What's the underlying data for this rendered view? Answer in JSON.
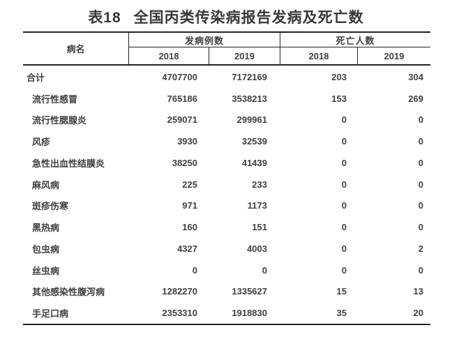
{
  "title": {
    "prefix": "表18",
    "text": "全国丙类传染病报告发病及死亡数"
  },
  "colors": {
    "ink": "#404040",
    "rule": "#222222",
    "background": "#ffffff"
  },
  "table": {
    "header": {
      "disease_col": "病名",
      "cases_group": "发病例数",
      "deaths_group": "死亡人数",
      "years": [
        "2018",
        "2019",
        "2018",
        "2019"
      ]
    },
    "rows": [
      {
        "name": "合计",
        "c2018": "4707700",
        "c2019": "7172169",
        "d2018": "203",
        "d2019": "304"
      },
      {
        "name": "流行性感冒",
        "c2018": "765186",
        "c2019": "3538213",
        "d2018": "153",
        "d2019": "269"
      },
      {
        "name": "流行性腮腺炎",
        "c2018": "259071",
        "c2019": "299961",
        "d2018": "0",
        "d2019": "0"
      },
      {
        "name": "风疹",
        "c2018": "3930",
        "c2019": "32539",
        "d2018": "0",
        "d2019": "0"
      },
      {
        "name": "急性出血性结膜炎",
        "c2018": "38250",
        "c2019": "41439",
        "d2018": "0",
        "d2019": "0"
      },
      {
        "name": "麻风病",
        "c2018": "225",
        "c2019": "233",
        "d2018": "0",
        "d2019": "0"
      },
      {
        "name": "斑疹伤寒",
        "c2018": "971",
        "c2019": "1173",
        "d2018": "0",
        "d2019": "0"
      },
      {
        "name": "黑热病",
        "c2018": "160",
        "c2019": "151",
        "d2018": "0",
        "d2019": "0"
      },
      {
        "name": "包虫病",
        "c2018": "4327",
        "c2019": "4003",
        "d2018": "0",
        "d2019": "2"
      },
      {
        "name": "丝虫病",
        "c2018": "0",
        "c2019": "0",
        "d2018": "0",
        "d2019": "0"
      },
      {
        "name": "其他感染性腹泻病",
        "c2018": "1282270",
        "c2019": "1335627",
        "d2018": "15",
        "d2019": "13"
      },
      {
        "name": "手足口病",
        "c2018": "2353310",
        "c2019": "1918830",
        "d2018": "35",
        "d2019": "20"
      }
    ]
  }
}
